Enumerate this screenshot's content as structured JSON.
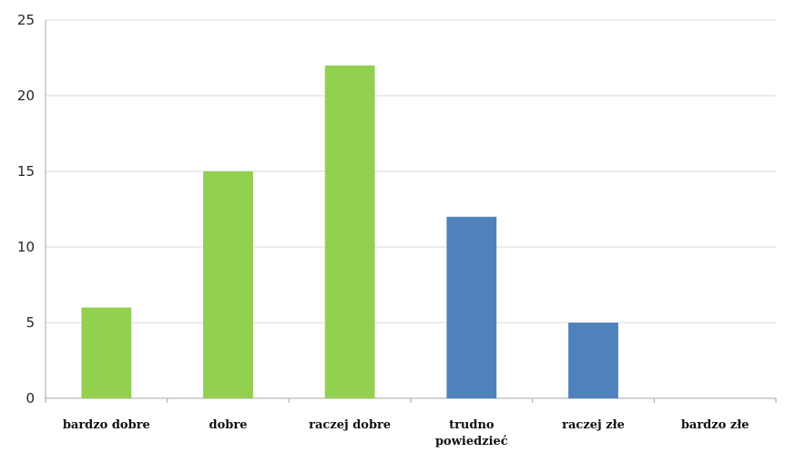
{
  "chart_data": {
    "type": "bar",
    "title": "",
    "xlabel": "",
    "ylabel": "",
    "categories": [
      "bardzo dobre",
      "dobre",
      "raczej dobre",
      "trudno powiedzieć",
      "raczej złe",
      "bardzo złe"
    ],
    "category_lines": [
      [
        "bardzo dobre"
      ],
      [
        "dobre"
      ],
      [
        "raczej dobre"
      ],
      [
        "trudno",
        "powiedzieć"
      ],
      [
        "raczej złe"
      ],
      [
        "bardzo złe"
      ]
    ],
    "values": [
      6,
      15,
      22,
      12,
      5,
      0
    ],
    "bar_colors": [
      "#92d050",
      "#92d050",
      "#92d050",
      "#4f81bd",
      "#4f81bd",
      "#4f81bd"
    ],
    "ylim": [
      0,
      25
    ],
    "yticks": [
      0,
      5,
      10,
      15,
      20,
      25
    ],
    "grid": true,
    "legend": "none",
    "colors": {
      "gridline": "#d9d9d9",
      "axis": "#a6a6a6",
      "positive": "#92d050",
      "neutral_negative": "#4f81bd"
    }
  }
}
